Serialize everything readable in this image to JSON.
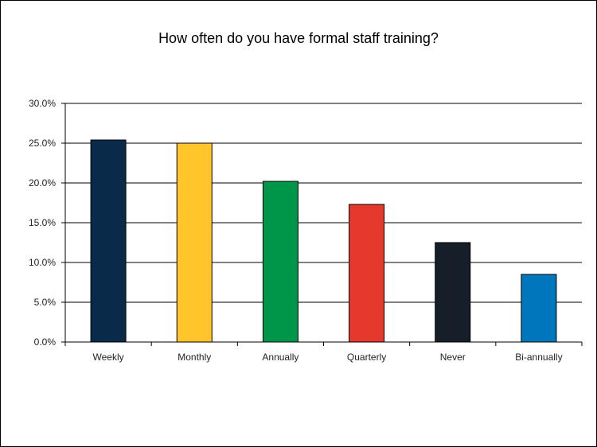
{
  "chart_data": {
    "type": "bar",
    "title": "How often do you have formal staff training?",
    "xlabel": "",
    "ylabel": "",
    "categories": [
      "Weekly",
      "Monthly",
      "Annually",
      "Quarterly",
      "Never",
      "Bi-annually"
    ],
    "values": [
      25.4,
      25.0,
      20.2,
      17.3,
      12.5,
      8.5
    ],
    "colors": [
      "#0a2a4a",
      "#ffc52b",
      "#00964a",
      "#e6392e",
      "#161f29",
      "#0077bd"
    ],
    "ylim": [
      0,
      30
    ],
    "yticks": [
      0,
      5,
      10,
      15,
      20,
      25,
      30
    ],
    "ytick_labels": [
      "0.0%",
      "5.0%",
      "10.0%",
      "15.0%",
      "20.0%",
      "25.0%",
      "30.0%"
    ],
    "grid": true,
    "legend": "none"
  }
}
